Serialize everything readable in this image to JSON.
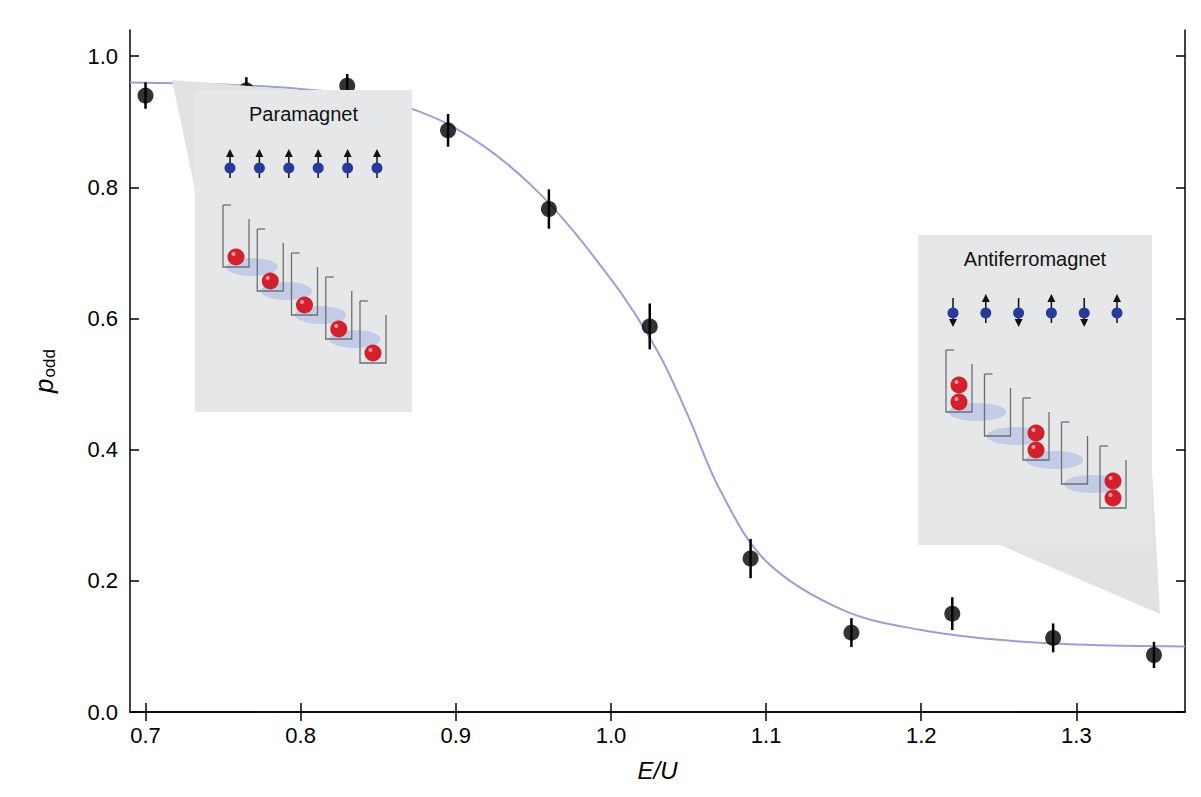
{
  "chart_data": {
    "type": "scatter",
    "xlabel": "E/U",
    "ylabel": {
      "text": "p",
      "subscript": "odd"
    },
    "x": [
      0.7,
      0.765,
      0.83,
      0.895,
      0.96,
      1.025,
      1.09,
      1.155,
      1.22,
      1.285,
      1.35
    ],
    "values": [
      0.94,
      0.948,
      0.955,
      0.887,
      0.767,
      0.588,
      0.234,
      0.121,
      0.15,
      0.113,
      0.087
    ],
    "errors": [
      0.02,
      0.02,
      0.018,
      0.025,
      0.03,
      0.035,
      0.03,
      0.022,
      0.025,
      0.022,
      0.02
    ],
    "color": "#000000",
    "marker": "circle",
    "fit": {
      "type": "line",
      "x": [
        0.69,
        0.75,
        0.8,
        0.85,
        0.9,
        0.95,
        1.0,
        1.03,
        1.05,
        1.07,
        1.1,
        1.15,
        1.2,
        1.25,
        1.3,
        1.37
      ],
      "values": [
        0.96,
        0.957,
        0.95,
        0.935,
        0.89,
        0.8,
        0.66,
        0.55,
        0.45,
        0.34,
        0.23,
        0.155,
        0.125,
        0.11,
        0.103,
        0.1
      ],
      "color": "#9b9fd6"
    },
    "xlim": [
      0.69,
      1.37
    ],
    "xticks": [
      0.7,
      0.8,
      0.9,
      {
        "value": 1,
        "label": "1.0"
      },
      1.1,
      1.2,
      1.3
    ],
    "ylim": [
      0,
      1.04
    ],
    "yticks": [
      {
        "value": 0,
        "label": "0.0"
      },
      0.2,
      0.4,
      0.6,
      0.8,
      {
        "value": 1,
        "label": "1.0"
      }
    ],
    "grid": false,
    "annotations": [
      "Paramagnet",
      "Antiferromagnet"
    ]
  }
}
